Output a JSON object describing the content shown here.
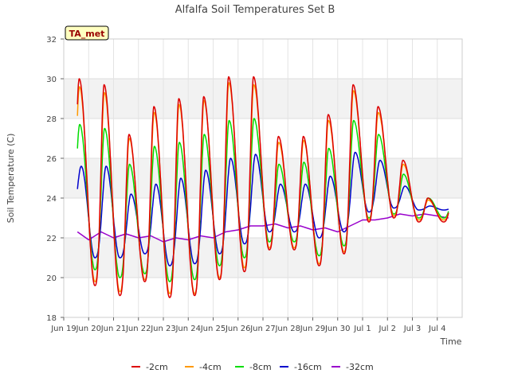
{
  "chart_data": {
    "type": "line",
    "title": "Alfalfa Soil Temperatures Set B",
    "xlabel": "Time",
    "ylabel": "Soil Temperature (C)",
    "ylim": [
      18,
      32
    ],
    "yticks": [
      18,
      20,
      22,
      24,
      26,
      28,
      30,
      32
    ],
    "xlim": [
      0,
      16
    ],
    "xticks": [
      {
        "v": 0,
        "label": "Jun 19"
      },
      {
        "v": 1,
        "label": "Jun 20"
      },
      {
        "v": 2,
        "label": "Jun 21"
      },
      {
        "v": 3,
        "label": "Jun 22"
      },
      {
        "v": 4,
        "label": "Jun 23"
      },
      {
        "v": 5,
        "label": "Jun 24"
      },
      {
        "v": 6,
        "label": "Jun 25"
      },
      {
        "v": 7,
        "label": "Jun 26"
      },
      {
        "v": 8,
        "label": "Jun 27"
      },
      {
        "v": 9,
        "label": "Jun 28"
      },
      {
        "v": 10,
        "label": "Jun 29"
      },
      {
        "v": 11,
        "label": "Jun 30"
      },
      {
        "v": 12,
        "label": "Jul 1"
      },
      {
        "v": 13,
        "label": "Jul 2"
      },
      {
        "v": 14,
        "label": "Jul 3"
      },
      {
        "v": 15,
        "label": "Jul 4"
      }
    ],
    "grid": true,
    "legend_position": "bottom-center",
    "annotation": "TA_met",
    "x_start": 0.55,
    "x_end": 15.45,
    "series": [
      {
        "name": "-2cm",
        "color": "#dd0000",
        "peak_offset": 0.62,
        "width": 0.12,
        "max": [
          30.0,
          29.7,
          27.2,
          28.6,
          29.0,
          29.1,
          30.1,
          30.1,
          27.1,
          27.1,
          28.2,
          29.7,
          28.6,
          25.9,
          24.0
        ],
        "min": [
          21.5,
          19.6,
          19.1,
          19.8,
          19.0,
          19.1,
          19.9,
          20.3,
          21.4,
          21.4,
          20.6,
          21.2,
          22.8,
          23.0,
          22.8
        ]
      },
      {
        "name": "-4cm",
        "color": "#ff9900",
        "peak_offset": 0.63,
        "width": 0.12,
        "max": [
          29.6,
          29.3,
          27.0,
          28.3,
          28.7,
          28.9,
          29.8,
          29.7,
          26.8,
          26.9,
          27.9,
          29.4,
          28.3,
          25.7,
          23.9
        ],
        "min": [
          21.6,
          19.8,
          19.3,
          19.9,
          19.2,
          19.2,
          20.0,
          20.5,
          21.5,
          21.5,
          20.7,
          21.3,
          22.9,
          23.1,
          22.9
        ]
      },
      {
        "name": "-8cm",
        "color": "#00dd00",
        "peak_offset": 0.64,
        "width": 0.14,
        "max": [
          27.7,
          27.5,
          25.7,
          26.6,
          26.8,
          27.2,
          27.9,
          28.0,
          25.7,
          25.8,
          26.5,
          27.9,
          27.2,
          25.2,
          24.0
        ],
        "min": [
          22.1,
          20.4,
          20.0,
          20.2,
          19.8,
          19.9,
          20.6,
          21.0,
          21.8,
          21.8,
          21.1,
          21.6,
          23.0,
          23.2,
          23.0
        ]
      },
      {
        "name": "-16cm",
        "color": "#0000cc",
        "peak_offset": 0.7,
        "width": 0.17,
        "max": [
          25.6,
          25.6,
          24.2,
          24.7,
          25.0,
          25.4,
          26.0,
          26.2,
          24.7,
          24.7,
          25.1,
          26.3,
          25.9,
          24.6,
          23.6
        ],
        "min": [
          22.7,
          21.0,
          21.0,
          21.2,
          20.6,
          20.7,
          21.2,
          21.7,
          22.3,
          22.3,
          22.0,
          22.3,
          23.3,
          23.5,
          23.4
        ]
      },
      {
        "name": "-32cm",
        "color": "#9900cc",
        "x": [
          0.55,
          1.0,
          1.5,
          2.0,
          2.5,
          3.0,
          3.5,
          4.0,
          4.5,
          5.0,
          5.5,
          6.0,
          6.5,
          7.0,
          7.5,
          8.0,
          8.5,
          9.0,
          9.5,
          10.0,
          10.5,
          11.0,
          11.5,
          12.0,
          12.5,
          13.0,
          13.5,
          14.0,
          14.5,
          15.0,
          15.45
        ],
        "values": [
          22.3,
          21.9,
          22.3,
          22.0,
          22.2,
          22.0,
          22.1,
          21.8,
          22.0,
          21.9,
          22.1,
          22.0,
          22.3,
          22.4,
          22.6,
          22.6,
          22.7,
          22.5,
          22.6,
          22.4,
          22.5,
          22.3,
          22.6,
          22.9,
          22.9,
          23.0,
          23.2,
          23.1,
          23.2,
          23.1,
          23.0
        ]
      }
    ]
  }
}
